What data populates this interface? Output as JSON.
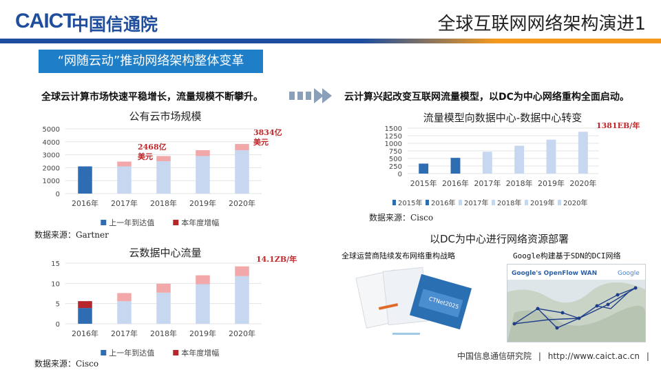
{
  "header": {
    "logo_text": "CAICT",
    "logo_cn": "中国信通院",
    "title": "全球互联网网络架构演进1"
  },
  "section_banner": "“网随云动”推动网络架构整体变革",
  "left_subhead": "全球云计算市场快速平稳增长，流量规模不断攀升。",
  "right_subhead": "云计算兴起改变互联网流量模型，以DC为中心网络重构全面启动。",
  "arrow_icon": "double-chevron-right-icon",
  "chart_data": [
    {
      "type": "bar",
      "stacked": true,
      "title": "公有云市场规模",
      "categories": [
        "2016年",
        "2017年",
        "2018年",
        "2019年",
        "2020年"
      ],
      "ylim": [
        0,
        5000
      ],
      "yticks": [
        0,
        1000,
        2000,
        3000,
        4000,
        5000
      ],
      "series": [
        {
          "name": "上一年到达值",
          "values": [
            2100,
            2100,
            2500,
            2900,
            3350
          ]
        },
        {
          "name": "本年度增幅",
          "values": [
            0,
            370,
            400,
            450,
            480
          ]
        }
      ],
      "colors": {
        "base_2016": "#2e6db2",
        "base": "#c6d7ef",
        "increment": "#f2a7a9"
      },
      "annotations": [
        {
          "text": "2468亿",
          "text2": "美元",
          "category": "2017年"
        },
        {
          "text": "3834亿",
          "text2": "美元",
          "category": "2020年"
        }
      ],
      "legend": "bottom",
      "source": "数据来源：Gartner",
      "grid": true
    },
    {
      "type": "bar",
      "stacked": true,
      "title": "云数据中心流量",
      "categories": [
        "2016年",
        "2017年",
        "2018年",
        "2019年",
        "2020年"
      ],
      "ylim": [
        0,
        15
      ],
      "yticks": [
        0,
        5,
        10,
        15
      ],
      "series": [
        {
          "name": "上一年到达值",
          "values": [
            3.9,
            5.6,
            7.7,
            9.8,
            11.8
          ]
        },
        {
          "name": "本年度增幅",
          "values": [
            1.7,
            2.0,
            2.2,
            2.2,
            2.4
          ]
        }
      ],
      "colors": {
        "base_2016": "#2e6db2",
        "inc_2016": "#b5272d",
        "base": "#c6d7ef",
        "increment": "#f2a7a9"
      },
      "annotations": [
        {
          "text": "14.1ZB/年",
          "category": "2020年"
        }
      ],
      "legend": "bottom",
      "source": "数据来源：Cisco",
      "grid": true
    },
    {
      "type": "bar",
      "title": "流量模型向数据中心-数据中心转变",
      "categories": [
        "2015年",
        "2016年",
        "2017年",
        "2018年",
        "2019年",
        "2020年"
      ],
      "ylim": [
        0,
        1500
      ],
      "yticks": [
        0,
        250,
        500,
        750,
        1000,
        1250,
        1500
      ],
      "values": [
        330,
        520,
        720,
        920,
        1120,
        1380
      ],
      "colors": [
        "#2e6db2",
        "#2e6db2",
        "#c6d7ef",
        "#c6d7ef",
        "#c6d7ef",
        "#c6d7ef"
      ],
      "annotations": [
        {
          "text": "1381EB/年",
          "category": "2020年"
        }
      ],
      "legend": "bottom",
      "legend_entries": [
        "2015年",
        "2016年",
        "2017年",
        "2018年",
        "2019年",
        "2020年"
      ],
      "source": "数据来源：Cisco",
      "grid": true
    }
  ],
  "dc_section": {
    "title": "以DC为中心进行网络资源部署",
    "left_caption": "全球运营商陆续发布网络重构战略",
    "right_caption": "Google构建基于SDN的DCI网络",
    "map_title": "Google's OpenFlow WAN",
    "map_logo": "Google",
    "report_label": "CTNet2025"
  },
  "footer": {
    "org": "中国信息通信研究院",
    "sep": "|",
    "url": "http://www.caict.ac.cn",
    "sep2": "|"
  }
}
